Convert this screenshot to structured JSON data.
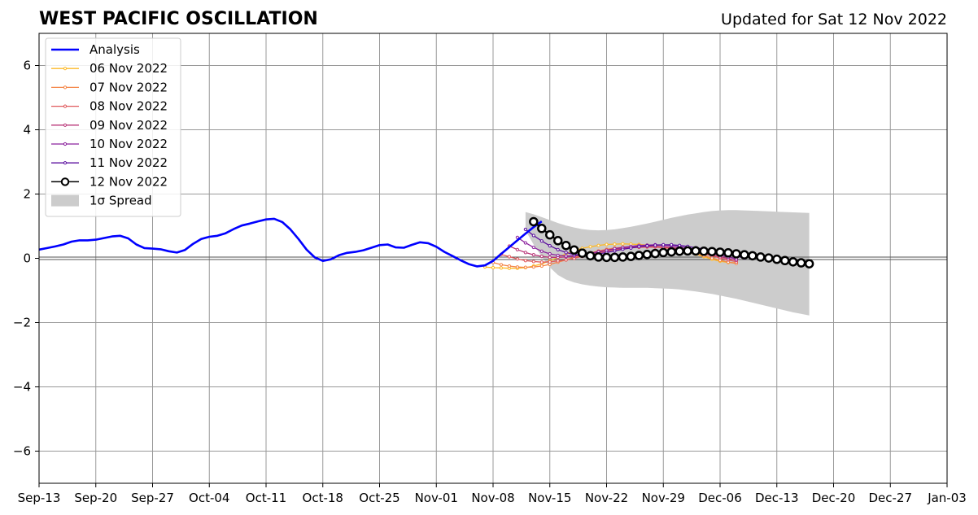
{
  "chart_data": {
    "type": "line",
    "title": "WEST PACIFIC OSCILLATION",
    "subtitle": "Updated for Sat 12 Nov 2022",
    "x_ticks": [
      "Sep-13",
      "Sep-20",
      "Sep-27",
      "Oct-04",
      "Oct-11",
      "Oct-18",
      "Oct-25",
      "Nov-01",
      "Nov-08",
      "Nov-15",
      "Nov-22",
      "Nov-29",
      "Dec-06",
      "Dec-13",
      "Dec-20",
      "Dec-27",
      "Jan-03"
    ],
    "y_ticks": [
      "−6",
      "−4",
      "−2",
      "0",
      "2",
      "4",
      "6"
    ],
    "xlim": [
      "2022-09-13",
      "2023-01-03"
    ],
    "ylim": [
      -7,
      7
    ],
    "grid": true,
    "legend_position": "upper-left",
    "analysis": {
      "name": "Analysis",
      "color": "#0000ff",
      "start_date": "2022-09-13",
      "values": [
        0.27,
        0.32,
        0.37,
        0.43,
        0.52,
        0.56,
        0.56,
        0.58,
        0.63,
        0.68,
        0.7,
        0.62,
        0.43,
        0.32,
        0.3,
        0.28,
        0.22,
        0.18,
        0.26,
        0.45,
        0.6,
        0.67,
        0.7,
        0.78,
        0.91,
        1.02,
        1.08,
        1.15,
        1.21,
        1.23,
        1.13,
        0.9,
        0.6,
        0.27,
        0.03,
        -0.08,
        -0.03,
        0.1,
        0.17,
        0.2,
        0.25,
        0.33,
        0.41,
        0.43,
        0.34,
        0.33,
        0.42,
        0.5,
        0.47,
        0.36,
        0.2,
        0.07,
        -0.06,
        -0.18,
        -0.25,
        -0.22,
        -0.08,
        0.14,
        0.35,
        0.56,
        0.77,
        0.97,
        1.15
      ]
    },
    "spread": {
      "name": "1σ Spread",
      "color": "#cccccc",
      "dates": [
        "2022-11-12",
        "2022-11-13",
        "2022-11-14",
        "2022-11-15",
        "2022-11-16",
        "2022-11-17",
        "2022-11-18",
        "2022-11-19",
        "2022-11-20",
        "2022-11-21",
        "2022-11-22",
        "2022-11-23",
        "2022-11-24",
        "2022-11-25",
        "2022-11-26",
        "2022-11-27",
        "2022-11-28",
        "2022-11-29",
        "2022-11-30",
        "2022-12-01",
        "2022-12-02",
        "2022-12-03",
        "2022-12-04",
        "2022-12-05",
        "2022-12-06",
        "2022-12-07",
        "2022-12-08",
        "2022-12-09",
        "2022-12-10",
        "2022-12-11",
        "2022-12-12",
        "2022-12-13",
        "2022-12-14",
        "2022-12-15",
        "2022-12-16",
        "2022-12-17"
      ],
      "upper": [
        1.44,
        1.37,
        1.28,
        1.19,
        1.1,
        1.02,
        0.96,
        0.91,
        0.88,
        0.87,
        0.88,
        0.9,
        0.94,
        0.98,
        1.03,
        1.08,
        1.14,
        1.2,
        1.26,
        1.31,
        1.36,
        1.4,
        1.44,
        1.47,
        1.49,
        1.5,
        1.5,
        1.49,
        1.48,
        1.47,
        1.46,
        1.45,
        1.44,
        1.43,
        1.42,
        1.41
      ],
      "lower": [
        0.87,
        0.43,
        0.05,
        -0.28,
        -0.52,
        -0.66,
        -0.75,
        -0.81,
        -0.85,
        -0.88,
        -0.9,
        -0.91,
        -0.92,
        -0.92,
        -0.92,
        -0.92,
        -0.93,
        -0.94,
        -0.95,
        -0.97,
        -1.0,
        -1.03,
        -1.07,
        -1.11,
        -1.16,
        -1.21,
        -1.26,
        -1.32,
        -1.38,
        -1.44,
        -1.5,
        -1.56,
        -1.62,
        -1.68,
        -1.73,
        -1.78
      ]
    },
    "forecasts": [
      {
        "name": "06 Nov 2022",
        "color": "#fcb927",
        "start_date": "2022-11-07",
        "values": [
          -0.27,
          -0.29,
          -0.3,
          -0.31,
          -0.31,
          -0.29,
          -0.24,
          -0.17,
          -0.08,
          0.03,
          0.14,
          0.24,
          0.31,
          0.36,
          0.4,
          0.43,
          0.44,
          0.45,
          0.44,
          0.43,
          0.41,
          0.38,
          0.35,
          0.31,
          0.26,
          0.2,
          0.13,
          0.05,
          -0.03,
          -0.09,
          -0.13,
          -0.14
        ]
      },
      {
        "name": "07 Nov 2022",
        "color": "#f48547",
        "start_date": "2022-11-08",
        "values": [
          -0.13,
          -0.2,
          -0.24,
          -0.27,
          -0.28,
          -0.27,
          -0.24,
          -0.19,
          -0.12,
          -0.05,
          0.03,
          0.1,
          0.17,
          0.23,
          0.28,
          0.32,
          0.35,
          0.36,
          0.37,
          0.36,
          0.35,
          0.33,
          0.3,
          0.26,
          0.21,
          0.15,
          0.08,
          0.01,
          -0.06,
          -0.12,
          -0.16
        ]
      },
      {
        "name": "08 Nov 2022",
        "color": "#e0595c",
        "start_date": "2022-11-09",
        "values": [
          0.12,
          0.05,
          -0.02,
          -0.07,
          -0.1,
          -0.12,
          -0.11,
          -0.08,
          -0.05,
          0.0,
          0.06,
          0.11,
          0.17,
          0.22,
          0.27,
          0.3,
          0.33,
          0.34,
          0.35,
          0.35,
          0.34,
          0.32,
          0.29,
          0.25,
          0.2,
          0.14,
          0.08,
          0.01,
          -0.05,
          -0.11
        ]
      },
      {
        "name": "09 Nov 2022",
        "color": "#b93779",
        "start_date": "2022-11-10",
        "values": [
          0.38,
          0.27,
          0.18,
          0.11,
          0.06,
          0.03,
          0.03,
          0.04,
          0.07,
          0.11,
          0.16,
          0.21,
          0.25,
          0.29,
          0.32,
          0.35,
          0.36,
          0.37,
          0.37,
          0.36,
          0.34,
          0.31,
          0.27,
          0.22,
          0.17,
          0.11,
          0.05,
          -0.01,
          -0.06
        ]
      },
      {
        "name": "10 Nov 2022",
        "color": "#8b219d",
        "start_date": "2022-11-11",
        "values": [
          0.65,
          0.48,
          0.34,
          0.22,
          0.14,
          0.09,
          0.07,
          0.08,
          0.11,
          0.15,
          0.2,
          0.25,
          0.3,
          0.34,
          0.37,
          0.4,
          0.41,
          0.42,
          0.41,
          0.39,
          0.36,
          0.32,
          0.27,
          0.22,
          0.16,
          0.1,
          0.04,
          -0.02
        ]
      },
      {
        "name": "11 Nov 2022",
        "color": "#5a0d9e",
        "start_date": "2022-11-12",
        "values": [
          0.9,
          0.71,
          0.54,
          0.39,
          0.27,
          0.18,
          0.12,
          0.1,
          0.11,
          0.14,
          0.18,
          0.23,
          0.28,
          0.32,
          0.36,
          0.39,
          0.41,
          0.42,
          0.42,
          0.4,
          0.37,
          0.33,
          0.29,
          0.24,
          0.19,
          0.13,
          0.07,
          0.01
        ]
      }
    ],
    "current_forecast": {
      "name": "12 Nov 2022",
      "color": "#000000",
      "start_date": "2022-11-13",
      "values": [
        1.14,
        0.93,
        0.73,
        0.55,
        0.4,
        0.26,
        0.16,
        0.08,
        0.04,
        0.03,
        0.03,
        0.04,
        0.06,
        0.09,
        0.12,
        0.15,
        0.18,
        0.2,
        0.22,
        0.23,
        0.23,
        0.22,
        0.21,
        0.19,
        0.17,
        0.14,
        0.11,
        0.08,
        0.04,
        0.01,
        -0.03,
        -0.07,
        -0.11,
        -0.14,
        -0.17
      ]
    },
    "legend": [
      {
        "label": "Analysis",
        "kind": "thick-line",
        "color": "#0000ff"
      },
      {
        "label": "06 Nov 2022",
        "kind": "small-marker",
        "color": "#fcb927"
      },
      {
        "label": "07 Nov 2022",
        "kind": "small-marker",
        "color": "#f48547"
      },
      {
        "label": "08 Nov 2022",
        "kind": "small-marker",
        "color": "#e0595c"
      },
      {
        "label": "09 Nov 2022",
        "kind": "small-marker",
        "color": "#b93779"
      },
      {
        "label": "10 Nov 2022",
        "kind": "small-marker",
        "color": "#8b219d"
      },
      {
        "label": "11 Nov 2022",
        "kind": "small-marker",
        "color": "#5a0d9e"
      },
      {
        "label": "12 Nov 2022",
        "kind": "big-circle",
        "color": "#000000"
      },
      {
        "label": "1σ Spread",
        "kind": "patch",
        "color": "#cccccc"
      }
    ]
  }
}
